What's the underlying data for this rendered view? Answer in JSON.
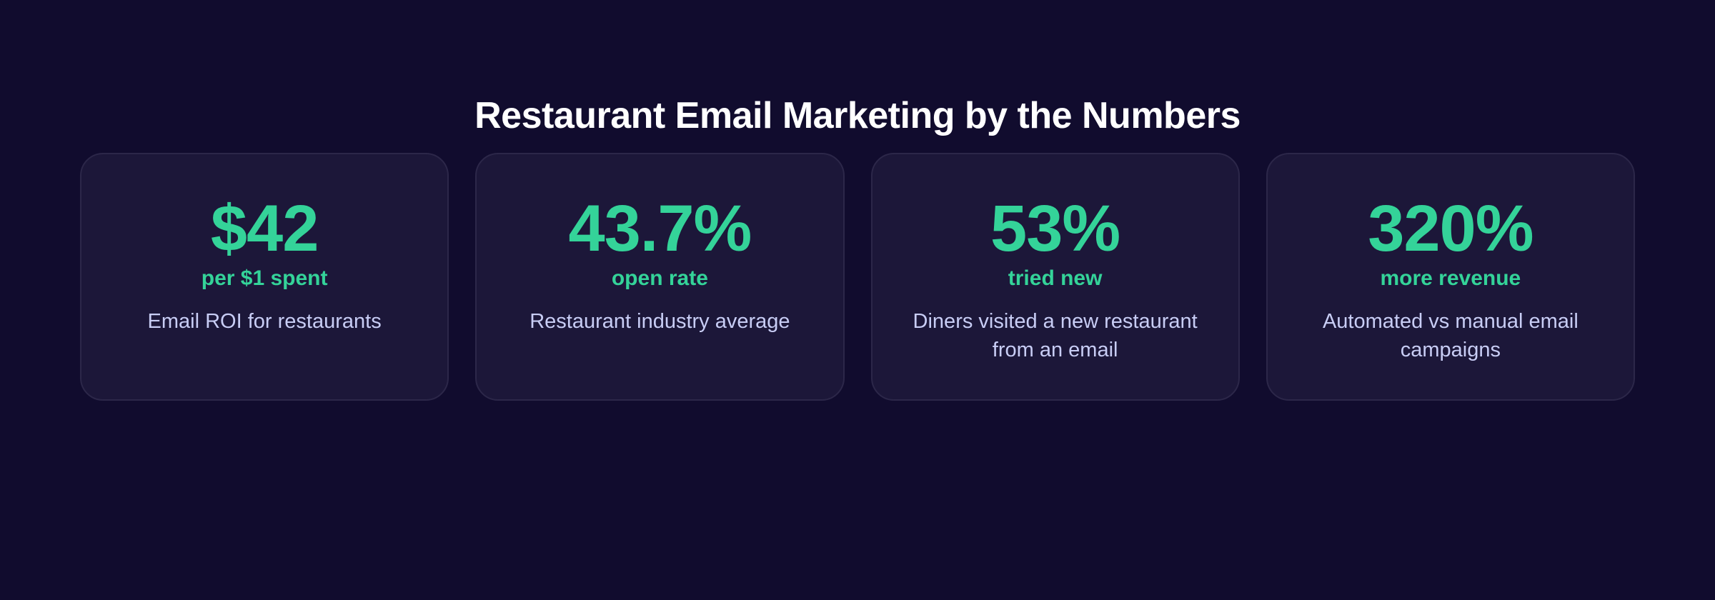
{
  "header": {
    "title": "Restaurant Email Marketing by the Numbers"
  },
  "theme": {
    "background": "#110c2e",
    "card_background": "#1c1739",
    "card_border": "#2c2749",
    "accent": "#34d399",
    "title_color": "#ffffff",
    "description_color": "#c8cdf5"
  },
  "stats": [
    {
      "value": "$42",
      "unit": "per $1 spent",
      "description": "Email ROI for restaurants"
    },
    {
      "value": "43.7%",
      "unit": "open rate",
      "description": "Restaurant industry average"
    },
    {
      "value": "53%",
      "unit": "tried new",
      "description": "Diners visited a new restaurant from an email"
    },
    {
      "value": "320%",
      "unit": "more revenue",
      "description": "Automated vs manual email campaigns"
    }
  ]
}
